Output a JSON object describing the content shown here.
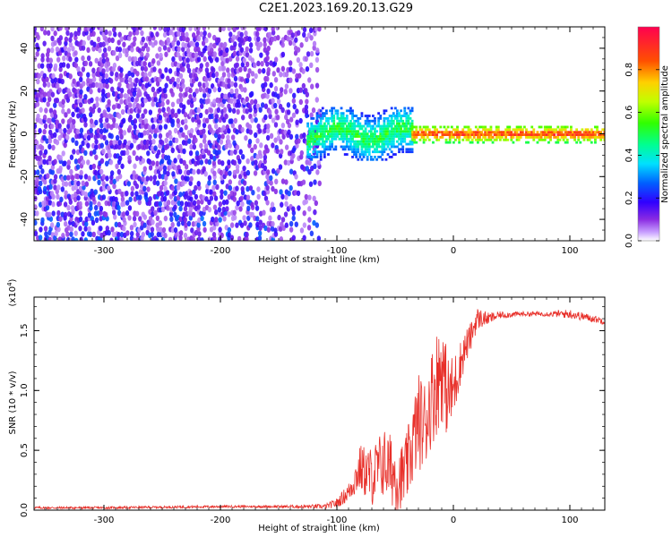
{
  "figure_title": "C2E1.2023.169.20.13.G29",
  "colors": {
    "line": "#e8302a",
    "axis": "#000000",
    "colormap": [
      "#ffffff",
      "#d9b8ff",
      "#8a2be2",
      "#5a00ff",
      "#0000ff",
      "#00c0ff",
      "#00ff80",
      "#80ff00",
      "#ffd000",
      "#ff6000",
      "#ff0040"
    ]
  },
  "chart_data": [
    {
      "type": "heatmap",
      "title": "",
      "xlabel": "Height of straight line (km)",
      "ylabel": "Frequency (Hz)",
      "xlim": [
        -360,
        130
      ],
      "ylim": [
        -50,
        50
      ],
      "x_ticks": [
        "-300",
        "-200",
        "-100",
        "0",
        "100"
      ],
      "x_tick_values": [
        -300,
        -200,
        -100,
        0,
        100
      ],
      "y_ticks": [
        "-40",
        "-20",
        "0",
        "20",
        "40"
      ],
      "y_tick_values": [
        -40,
        -20,
        0,
        20,
        40
      ],
      "colorbar": {
        "label": "Normalized spectral amplitude",
        "range": [
          0.0,
          1.0
        ],
        "ticks": [
          "0.0",
          "0.2",
          "0.4",
          "0.6",
          "0.8"
        ],
        "tick_values": [
          0.0,
          0.2,
          0.4,
          0.6,
          0.8
        ]
      },
      "regions": [
        {
          "x_range": [
            -360,
            -115
          ],
          "freq_spread": [
            -50,
            50
          ],
          "amplitude": [
            0.05,
            0.25
          ]
        },
        {
          "x_range": [
            -125,
            -35
          ],
          "freq_center": 0,
          "freq_spread": [
            -12,
            12
          ],
          "amplitude": [
            0.2,
            0.6
          ]
        },
        {
          "x_range": [
            -35,
            130
          ],
          "freq_center": 0,
          "freq_spread": [
            -4,
            4
          ],
          "amplitude": [
            0.5,
            1.0
          ]
        }
      ]
    },
    {
      "type": "line",
      "title": "",
      "xlabel": "Height of straight line (km)",
      "ylabel": "SNR (10 * v/v)",
      "y_scale_label": "(x10",
      "y_scale_exp": "4",
      "y_scale_close": ")",
      "xlim": [
        -360,
        130
      ],
      "ylim": [
        0,
        1.78
      ],
      "x_ticks": [
        "-300",
        "-200",
        "-100",
        "0",
        "100"
      ],
      "x_tick_values": [
        -300,
        -200,
        -100,
        0,
        100
      ],
      "y_ticks": [
        "0.0",
        "0.5",
        "1.0",
        "1.5"
      ],
      "y_tick_values": [
        0.0,
        0.5,
        1.0,
        1.5
      ],
      "series": [
        {
          "x": [
            -360,
            -300,
            -200,
            -150,
            -110,
            -100,
            -90,
            -80,
            -70,
            -60,
            -50,
            -45,
            -40,
            -35,
            -30,
            -25,
            -20,
            -15,
            -10,
            -5,
            0,
            5,
            10,
            15,
            20,
            30,
            40,
            60,
            80,
            100,
            120,
            130
          ],
          "y": [
            0.02,
            0.02,
            0.03,
            0.03,
            0.03,
            0.06,
            0.15,
            0.35,
            0.28,
            0.4,
            0.3,
            0.25,
            0.35,
            0.55,
            0.75,
            0.7,
            0.9,
            1.05,
            1.2,
            0.95,
            1.0,
            1.2,
            1.35,
            1.45,
            1.6,
            1.6,
            1.63,
            1.64,
            1.64,
            1.64,
            1.6,
            1.58
          ],
          "noise": [
            0.01,
            0.01,
            0.01,
            0.01,
            0.02,
            0.04,
            0.08,
            0.2,
            0.25,
            0.3,
            0.3,
            0.3,
            0.3,
            0.35,
            0.4,
            0.4,
            0.4,
            0.45,
            0.45,
            0.35,
            0.3,
            0.2,
            0.15,
            0.12,
            0.1,
            0.05,
            0.03,
            0.02,
            0.02,
            0.04,
            0.03,
            0.03
          ]
        }
      ]
    }
  ]
}
